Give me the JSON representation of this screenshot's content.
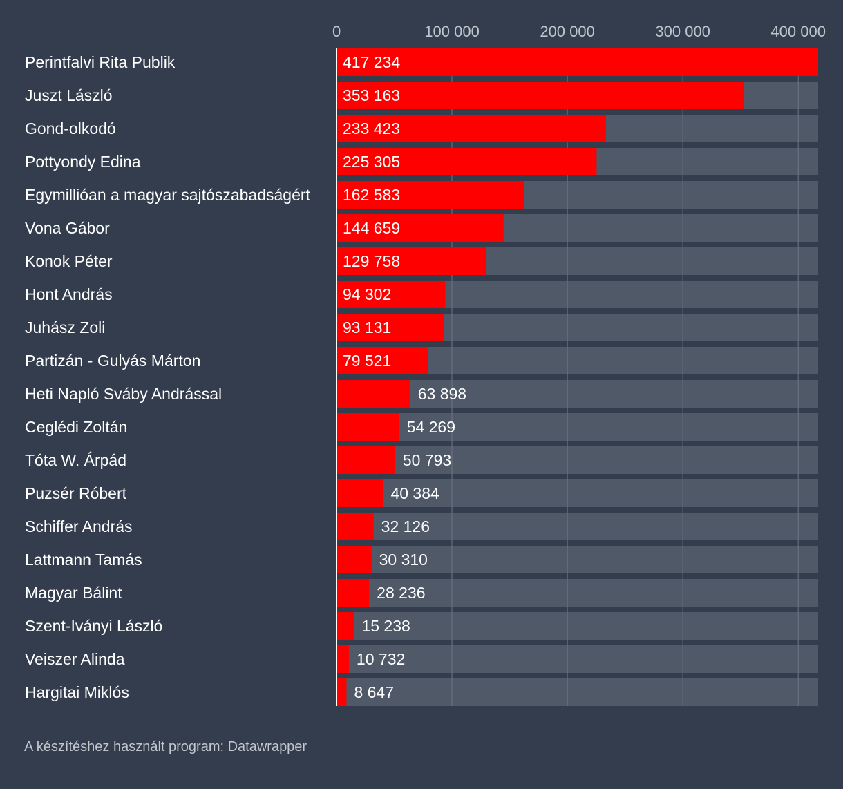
{
  "chart_data": {
    "type": "bar",
    "orientation": "horizontal",
    "categories": [
      "Perintfalvi Rita Publik",
      "Juszt László",
      "Gond-olkodó",
      "Pottyondy Edina",
      "Egymillióan a magyar sajtószabadságért",
      "Vona Gábor",
      "Konok Péter",
      "Hont András",
      "Juhász Zoli",
      "Partizán - Gulyás Márton",
      "Heti Napló Sváby Andrással",
      "Ceglédi Zoltán",
      "Tóta W. Árpád",
      "Puzsér Róbert",
      "Schiffer András",
      "Lattmann Tamás",
      "Magyar Bálint",
      "Szent-Iványi László",
      "Veiszer Alinda",
      "Hargitai Miklós"
    ],
    "values": [
      417234,
      353163,
      233423,
      225305,
      162583,
      144659,
      129758,
      94302,
      93131,
      79521,
      63898,
      54269,
      50793,
      40384,
      32126,
      30310,
      28236,
      15238,
      10732,
      8647
    ],
    "value_labels": [
      "417 234",
      "353 163",
      "233 423",
      "225 305",
      "162 583",
      "144 659",
      "129 758",
      "94 302",
      "93 131",
      "79 521",
      "63 898",
      "54 269",
      "50 793",
      "40 384",
      "32 126",
      "30 310",
      "28 236",
      "15 238",
      "10 732",
      "8 647"
    ],
    "x_ticks": [
      0,
      100000,
      200000,
      300000,
      400000
    ],
    "x_tick_labels": [
      "0",
      "100 000",
      "200 000",
      "300 000",
      "400 000"
    ],
    "xlim": [
      0,
      417234
    ],
    "title": "",
    "xlabel": "",
    "ylabel": "",
    "grid": true,
    "colors": {
      "background": "#333d4d",
      "bar": "#ff0000",
      "track": "#4f5968",
      "gridline": "#6c7684",
      "axis": "#ffffff"
    }
  },
  "footer": {
    "text": "A készítéshez használt program: Datawrapper"
  }
}
